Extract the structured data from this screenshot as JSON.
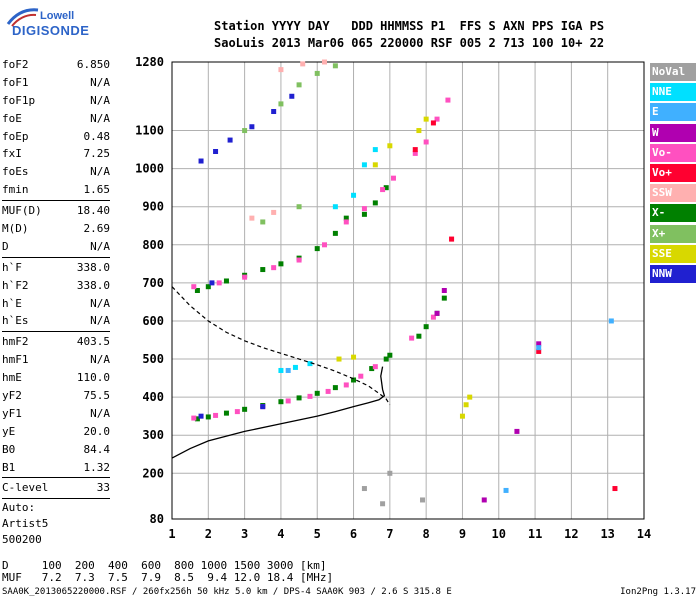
{
  "logo": {
    "line1": "Lowell",
    "line2": "DIGISONDE"
  },
  "header": {
    "line1": "Station YYYY DAY   DDD HHMMSS P1  FFS S AXN PPS IGA PS",
    "line2": "SaoLuis 2013 Mar06 065 220000 RSF 005 2 713 100 10+ 22"
  },
  "params": {
    "group1": [
      {
        "k": "foF2",
        "v": "6.850"
      },
      {
        "k": "foF1",
        "v": "N/A"
      },
      {
        "k": "foF1p",
        "v": "N/A"
      },
      {
        "k": "foE",
        "v": "N/A"
      },
      {
        "k": "foEp",
        "v": "0.48"
      },
      {
        "k": "fxI",
        "v": "7.25"
      },
      {
        "k": "foEs",
        "v": "N/A"
      },
      {
        "k": "fmin",
        "v": "1.65"
      }
    ],
    "group2": [
      {
        "k": "MUF(D)",
        "v": "18.40"
      },
      {
        "k": "M(D)",
        "v": "2.69"
      },
      {
        "k": "D",
        "v": "N/A"
      }
    ],
    "group3": [
      {
        "k": "h`F",
        "v": "338.0"
      },
      {
        "k": "h`F2",
        "v": "338.0"
      },
      {
        "k": "h`E",
        "v": "N/A"
      },
      {
        "k": "h`Es",
        "v": "N/A"
      }
    ],
    "group4": [
      {
        "k": "hmF2",
        "v": "403.5"
      },
      {
        "k": "hmF1",
        "v": "N/A"
      },
      {
        "k": "hmE",
        "v": "110.0"
      },
      {
        "k": "yF2",
        "v": "75.5"
      },
      {
        "k": "yF1",
        "v": "N/A"
      },
      {
        "k": "yE",
        "v": "20.0"
      },
      {
        "k": "B0",
        "v": "84.4"
      },
      {
        "k": "B1",
        "v": "1.32"
      }
    ],
    "group5": [
      {
        "k": "C-level",
        "v": "33"
      }
    ],
    "auto": [
      "Auto:",
      "Artist5",
      "500200"
    ]
  },
  "legend": [
    {
      "label": "NoVal",
      "color": "#a0a0a0"
    },
    {
      "label": "NNE",
      "color": "#00e0ff"
    },
    {
      "label": "E",
      "color": "#40b0ff"
    },
    {
      "label": "W",
      "color": "#b000b0"
    },
    {
      "label": "Vo-",
      "color": "#ff50c0"
    },
    {
      "label": "Vo+",
      "color": "#ff0030"
    },
    {
      "label": "SSW",
      "color": "#ffb0b0"
    },
    {
      "label": "X-",
      "color": "#008000"
    },
    {
      "label": "X+",
      "color": "#80c060"
    },
    {
      "label": "SSE",
      "color": "#d8d800"
    },
    {
      "label": "NNW",
      "color": "#2020d0"
    }
  ],
  "bottom": {
    "d_line": "D     100  200  400  600  800 1000 1500 3000 [km]",
    "muf_line": "MUF   7.2  7.3  7.5  7.9  8.5  9.4 12.0 18.4 [MHz]"
  },
  "footer": {
    "left": "SAA0K_2013065220000.RSF / 260fx256h 50 kHz 5.0 km / DPS-4 SAA0K 903 / 2.6 S 315.8 E",
    "right": "Ion2Png 1.3.17"
  },
  "chart_data": {
    "type": "scatter",
    "xlim": [
      1,
      14
    ],
    "ylim": [
      80,
      1280
    ],
    "x_ticks": [
      1,
      2,
      3,
      4,
      5,
      6,
      7,
      8,
      9,
      10,
      11,
      12,
      13,
      14
    ],
    "y_ticks": [
      80,
      200,
      300,
      400,
      500,
      600,
      700,
      800,
      900,
      1000,
      1100,
      1280
    ],
    "grid": true,
    "series": [
      {
        "name": "X-",
        "points": [
          [
            1.7,
            343
          ],
          [
            2.0,
            348
          ],
          [
            2.5,
            358
          ],
          [
            3.0,
            368
          ],
          [
            3.5,
            378
          ],
          [
            4.0,
            388
          ],
          [
            4.5,
            398
          ],
          [
            5.0,
            410
          ],
          [
            5.5,
            425
          ],
          [
            6.0,
            445
          ],
          [
            6.5,
            475
          ],
          [
            6.9,
            500
          ],
          [
            7.0,
            510
          ],
          [
            1.7,
            680
          ],
          [
            2.0,
            690
          ],
          [
            2.5,
            705
          ],
          [
            3.0,
            720
          ],
          [
            3.5,
            735
          ],
          [
            4.0,
            750
          ],
          [
            4.5,
            765
          ],
          [
            5.0,
            790
          ],
          [
            5.5,
            830
          ],
          [
            5.8,
            870
          ],
          [
            6.3,
            880
          ],
          [
            6.6,
            910
          ],
          [
            6.9,
            950
          ],
          [
            7.8,
            560
          ],
          [
            8.0,
            585
          ],
          [
            8.3,
            620
          ],
          [
            8.5,
            660
          ]
        ]
      },
      {
        "name": "Vo-",
        "points": [
          [
            1.6,
            345
          ],
          [
            2.2,
            352
          ],
          [
            2.8,
            362
          ],
          [
            3.5,
            375
          ],
          [
            4.2,
            390
          ],
          [
            4.8,
            402
          ],
          [
            5.3,
            415
          ],
          [
            5.8,
            432
          ],
          [
            6.2,
            455
          ],
          [
            6.6,
            480
          ],
          [
            1.6,
            690
          ],
          [
            2.3,
            700
          ],
          [
            3.0,
            715
          ],
          [
            3.8,
            740
          ],
          [
            4.5,
            760
          ],
          [
            5.2,
            800
          ],
          [
            5.8,
            860
          ],
          [
            6.3,
            895
          ],
          [
            6.8,
            945
          ],
          [
            7.1,
            975
          ],
          [
            7.7,
            1040
          ],
          [
            8.0,
            1070
          ],
          [
            8.3,
            1130
          ],
          [
            8.6,
            1180
          ],
          [
            7.6,
            555
          ],
          [
            8.2,
            610
          ]
        ]
      },
      {
        "name": "NNW",
        "points": [
          [
            1.8,
            1020
          ],
          [
            2.2,
            1045
          ],
          [
            2.6,
            1075
          ],
          [
            3.2,
            1110
          ],
          [
            3.8,
            1150
          ],
          [
            4.3,
            1190
          ],
          [
            1.8,
            350
          ],
          [
            2.1,
            700
          ],
          [
            3.5,
            375
          ]
        ]
      },
      {
        "name": "NNE",
        "points": [
          [
            4.0,
            470
          ],
          [
            4.4,
            478
          ],
          [
            4.8,
            488
          ],
          [
            5.5,
            900
          ],
          [
            6.0,
            930
          ],
          [
            6.3,
            1010
          ],
          [
            6.6,
            1050
          ]
        ]
      },
      {
        "name": "SSE",
        "points": [
          [
            5.6,
            500
          ],
          [
            6.0,
            505
          ],
          [
            6.6,
            1010
          ],
          [
            7.0,
            1060
          ],
          [
            7.8,
            1100
          ],
          [
            8.0,
            1130
          ],
          [
            9.0,
            350
          ],
          [
            9.1,
            380
          ],
          [
            9.2,
            400
          ]
        ]
      },
      {
        "name": "X+",
        "points": [
          [
            3.0,
            1100
          ],
          [
            4.0,
            1170
          ],
          [
            4.5,
            1220
          ],
          [
            5.0,
            1250
          ],
          [
            5.5,
            1270
          ],
          [
            3.5,
            860
          ],
          [
            4.5,
            900
          ]
        ]
      },
      {
        "name": "W",
        "points": [
          [
            8.3,
            620
          ],
          [
            8.5,
            680
          ],
          [
            11.1,
            540
          ],
          [
            9.6,
            130
          ],
          [
            10.5,
            310
          ]
        ]
      },
      {
        "name": "SSW",
        "points": [
          [
            4.0,
            1260
          ],
          [
            4.6,
            1275
          ],
          [
            5.2,
            1280
          ],
          [
            3.2,
            870
          ],
          [
            3.8,
            885
          ],
          [
            8.7,
            815
          ]
        ]
      },
      {
        "name": "Vo+",
        "points": [
          [
            7.7,
            1050
          ],
          [
            8.2,
            1120
          ],
          [
            8.7,
            815
          ],
          [
            11.1,
            520
          ],
          [
            13.2,
            160
          ]
        ]
      },
      {
        "name": "E",
        "points": [
          [
            11.1,
            530
          ],
          [
            10.2,
            155
          ],
          [
            13.1,
            600
          ],
          [
            4.2,
            470
          ]
        ]
      },
      {
        "name": "NoVal",
        "points": [
          [
            7.0,
            200
          ],
          [
            6.8,
            120
          ],
          [
            7.9,
            130
          ],
          [
            6.3,
            160
          ]
        ]
      }
    ],
    "profile_curve": {
      "style": "solid",
      "points": [
        [
          1.0,
          240
        ],
        [
          1.5,
          265
        ],
        [
          2.0,
          285
        ],
        [
          3.0,
          310
        ],
        [
          4.0,
          330
        ],
        [
          5.0,
          350
        ],
        [
          5.5,
          362
        ],
        [
          6.0,
          375
        ],
        [
          6.4,
          385
        ],
        [
          6.7,
          393
        ],
        [
          6.85,
          403.5
        ],
        [
          6.8,
          420
        ],
        [
          6.75,
          455
        ],
        [
          6.8,
          480
        ]
      ]
    },
    "model_curve": {
      "style": "dashed",
      "points": [
        [
          1.0,
          690
        ],
        [
          1.5,
          640
        ],
        [
          2.0,
          600
        ],
        [
          2.5,
          570
        ],
        [
          3.0,
          548
        ],
        [
          3.5,
          530
        ],
        [
          4.0,
          515
        ],
        [
          4.5,
          500
        ],
        [
          5.0,
          485
        ],
        [
          5.5,
          468
        ],
        [
          6.0,
          448
        ],
        [
          6.4,
          430
        ],
        [
          6.7,
          410
        ],
        [
          6.9,
          395
        ],
        [
          7.0,
          380
        ]
      ]
    }
  }
}
